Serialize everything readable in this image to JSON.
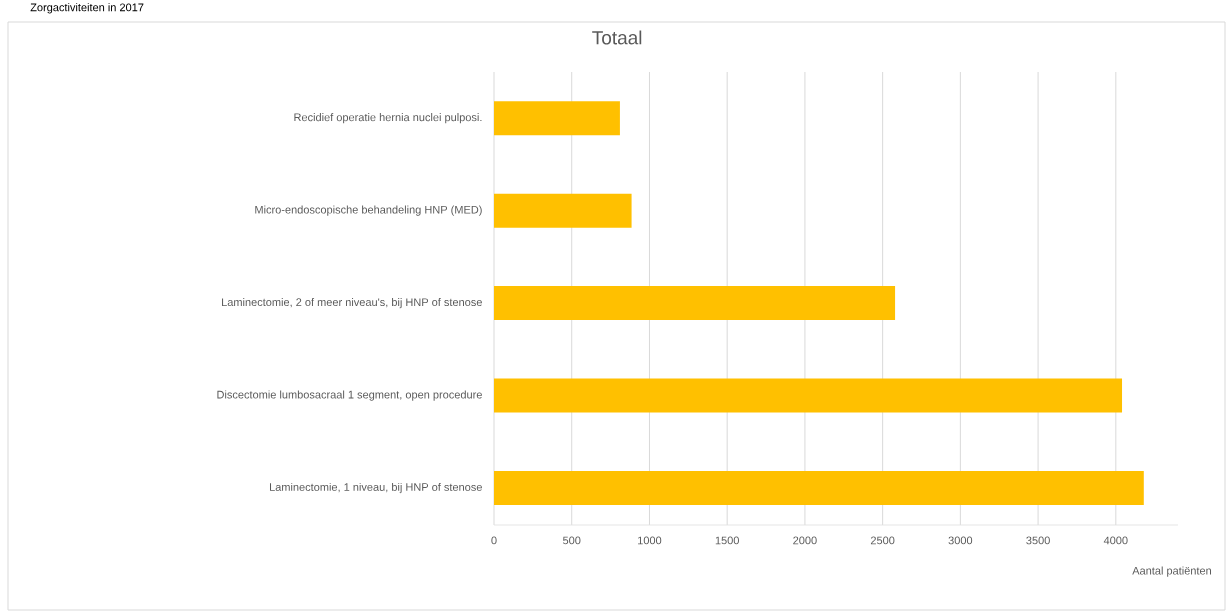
{
  "chart_data": {
    "type": "bar",
    "orientation": "horizontal",
    "title": "Totaal",
    "xlabel": "Aantal patiënten",
    "annotations": [
      "Zorgactiviteiten in 2017"
    ],
    "categories": [
      "Recidief operatie hernia nuclei pulposi.",
      "Micro-endoscopische behandeling HNP (MED)",
      "Laminectomie, 2 of meer niveau's, bij HNP of stenose",
      "Discectomie lumbosacraal 1 segment, open procedure",
      "Laminectomie, 1 niveau, bij HNP of stenose"
    ],
    "values": [
      810,
      885,
      2580,
      4040,
      4180
    ],
    "color": "#ffc000",
    "xlim": [
      0,
      4400
    ],
    "xticks": [
      0,
      500,
      1000,
      1500,
      2000,
      2500,
      3000,
      3500,
      4000
    ],
    "grid": "x"
  }
}
